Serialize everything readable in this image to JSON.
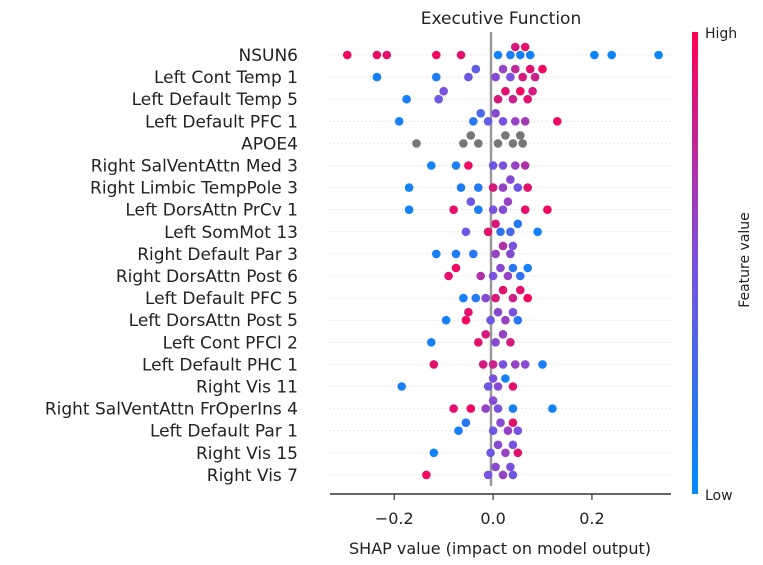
{
  "chart_data": {
    "type": "scatter",
    "subtype": "shap-beeswarm",
    "title": "Executive Function",
    "xlabel": "SHAP value (impact on model output)",
    "xlim": [
      -0.33,
      0.36
    ],
    "xticks": [
      -0.2,
      0.0,
      0.2
    ],
    "xtick_labels": [
      "−0.2",
      "0.0",
      "0.2"
    ],
    "grid": false,
    "colorbar": {
      "label": "Feature value",
      "high_label": "High",
      "low_label": "Low",
      "high_color": "#ff0052",
      "low_color": "#008bfb",
      "mid_color": "#7a52e0",
      "missing_color": "#777777"
    },
    "features": [
      {
        "name": "NSUN6",
        "points": [
          [
            -0.295,
            0.95
          ],
          [
            -0.235,
            0.92
          ],
          [
            -0.215,
            0.9
          ],
          [
            -0.115,
            0.95
          ],
          [
            -0.065,
            0.9
          ],
          [
            0.01,
            0.08
          ],
          [
            0.035,
            0.12
          ],
          [
            0.055,
            0.1
          ],
          [
            0.075,
            0.08
          ],
          [
            0.045,
            0.85
          ],
          [
            0.065,
            0.9
          ],
          [
            0.205,
            0.05
          ],
          [
            0.24,
            0.05
          ],
          [
            0.335,
            0.05
          ]
        ]
      },
      {
        "name": "Left Cont Temp 1",
        "points": [
          [
            -0.235,
            0.08
          ],
          [
            -0.115,
            0.12
          ],
          [
            -0.05,
            0.45
          ],
          [
            -0.035,
            0.4
          ],
          [
            0.005,
            0.55
          ],
          [
            0.02,
            0.6
          ],
          [
            0.035,
            0.5
          ],
          [
            0.045,
            0.75
          ],
          [
            0.06,
            0.85
          ],
          [
            0.075,
            0.9
          ],
          [
            0.085,
            0.8
          ],
          [
            0.1,
            0.95
          ]
        ]
      },
      {
        "name": "Left Default Temp 5",
        "points": [
          [
            -0.175,
            0.1
          ],
          [
            -0.11,
            0.45
          ],
          [
            -0.1,
            0.5
          ],
          [
            0.01,
            0.85
          ],
          [
            0.025,
            0.9
          ],
          [
            0.04,
            0.8
          ],
          [
            0.055,
            0.95
          ],
          [
            0.07,
            0.9
          ],
          [
            0.08,
            0.85
          ]
        ]
      },
      {
        "name": "Left Default PFC 1",
        "points": [
          [
            -0.19,
            0.1
          ],
          [
            -0.04,
            0.15
          ],
          [
            -0.025,
            0.3
          ],
          [
            -0.01,
            0.4
          ],
          [
            0.005,
            0.55
          ],
          [
            0.02,
            0.5
          ],
          [
            0.045,
            0.6
          ],
          [
            0.065,
            0.65
          ],
          [
            0.13,
            0.95
          ]
        ]
      },
      {
        "name": "APOE4",
        "missing": true,
        "points": [
          [
            -0.155,
            0
          ],
          [
            -0.06,
            0
          ],
          [
            -0.045,
            0
          ],
          [
            -0.03,
            0
          ],
          [
            0.01,
            0
          ],
          [
            0.025,
            0
          ],
          [
            0.04,
            0
          ],
          [
            0.055,
            0
          ],
          [
            0.06,
            0
          ]
        ]
      },
      {
        "name": "Right SalVentAttn Med 3",
        "points": [
          [
            -0.125,
            0.08
          ],
          [
            -0.075,
            0.12
          ],
          [
            -0.05,
            0.95
          ],
          [
            0.0,
            0.45
          ],
          [
            0.02,
            0.5
          ],
          [
            0.045,
            0.6
          ],
          [
            0.065,
            0.7
          ]
        ]
      },
      {
        "name": "Right Limbic TempPole 3",
        "points": [
          [
            -0.17,
            0.08
          ],
          [
            -0.065,
            0.12
          ],
          [
            -0.03,
            0.15
          ],
          [
            0.0,
            0.85
          ],
          [
            0.02,
            0.6
          ],
          [
            0.035,
            0.55
          ],
          [
            0.05,
            0.45
          ],
          [
            0.07,
            0.9
          ]
        ]
      },
      {
        "name": "Left DorsAttn PrCv 1",
        "points": [
          [
            -0.17,
            0.08
          ],
          [
            -0.03,
            0.12
          ],
          [
            -0.08,
            0.9
          ],
          [
            -0.045,
            0.45
          ],
          [
            0.0,
            0.5
          ],
          [
            0.02,
            0.55
          ],
          [
            0.03,
            0.6
          ],
          [
            0.065,
            0.9
          ],
          [
            0.11,
            0.95
          ]
        ]
      },
      {
        "name": "Left SomMot 13",
        "points": [
          [
            -0.055,
            0.45
          ],
          [
            -0.01,
            0.9
          ],
          [
            0.005,
            0.85
          ],
          [
            0.015,
            0.2
          ],
          [
            0.035,
            0.3
          ],
          [
            0.05,
            0.15
          ],
          [
            0.09,
            0.1
          ]
        ]
      },
      {
        "name": "Right Default Par 3",
        "points": [
          [
            -0.115,
            0.1
          ],
          [
            -0.075,
            0.12
          ],
          [
            -0.04,
            0.15
          ],
          [
            0.005,
            0.6
          ],
          [
            0.02,
            0.7
          ],
          [
            0.035,
            0.55
          ],
          [
            0.04,
            0.5
          ]
        ]
      },
      {
        "name": "Right DorsAttn Post 6",
        "points": [
          [
            -0.09,
            0.9
          ],
          [
            -0.075,
            0.95
          ],
          [
            -0.025,
            0.7
          ],
          [
            0.0,
            0.5
          ],
          [
            0.015,
            0.55
          ],
          [
            0.03,
            0.6
          ],
          [
            0.04,
            0.15
          ],
          [
            0.055,
            0.2
          ],
          [
            0.07,
            0.1
          ]
        ]
      },
      {
        "name": "Left Default PFC 5",
        "points": [
          [
            -0.06,
            0.1
          ],
          [
            -0.035,
            0.15
          ],
          [
            -0.015,
            0.55
          ],
          [
            0.005,
            0.85
          ],
          [
            0.02,
            0.9
          ],
          [
            0.04,
            0.8
          ],
          [
            0.055,
            0.9
          ],
          [
            0.07,
            0.95
          ]
        ]
      },
      {
        "name": "Left DorsAttn Post 5",
        "points": [
          [
            -0.095,
            0.1
          ],
          [
            -0.055,
            0.95
          ],
          [
            -0.05,
            0.9
          ],
          [
            -0.005,
            0.45
          ],
          [
            0.01,
            0.55
          ],
          [
            0.025,
            0.6
          ],
          [
            0.04,
            0.5
          ],
          [
            0.05,
            0.15
          ]
        ]
      },
      {
        "name": "Left Cont PFCl 2",
        "points": [
          [
            -0.125,
            0.1
          ],
          [
            -0.03,
            0.9
          ],
          [
            -0.015,
            0.85
          ],
          [
            0.005,
            0.55
          ],
          [
            0.02,
            0.6
          ],
          [
            0.035,
            0.85
          ]
        ]
      },
      {
        "name": "Left Default PHC 1",
        "points": [
          [
            -0.12,
            0.9
          ],
          [
            -0.02,
            0.85
          ],
          [
            0.0,
            0.8
          ],
          [
            0.02,
            0.5
          ],
          [
            0.045,
            0.6
          ],
          [
            0.065,
            0.55
          ],
          [
            0.1,
            0.1
          ]
        ]
      },
      {
        "name": "Right Vis 11",
        "points": [
          [
            -0.185,
            0.1
          ],
          [
            -0.01,
            0.45
          ],
          [
            0.0,
            0.5
          ],
          [
            0.01,
            0.55
          ],
          [
            0.025,
            0.1
          ],
          [
            0.04,
            0.9
          ]
        ]
      },
      {
        "name": "Right SalVentAttn FrOperIns 4",
        "points": [
          [
            -0.08,
            0.9
          ],
          [
            -0.045,
            0.95
          ],
          [
            -0.015,
            0.6
          ],
          [
            0.0,
            0.55
          ],
          [
            0.01,
            0.5
          ],
          [
            0.04,
            0.1
          ],
          [
            0.12,
            0.08
          ]
        ]
      },
      {
        "name": "Left Default Par 1",
        "points": [
          [
            -0.07,
            0.1
          ],
          [
            -0.055,
            0.15
          ],
          [
            0.0,
            0.45
          ],
          [
            0.015,
            0.55
          ],
          [
            0.03,
            0.6
          ],
          [
            0.04,
            0.9
          ],
          [
            0.05,
            0.5
          ]
        ]
      },
      {
        "name": "Right Vis 15",
        "points": [
          [
            -0.12,
            0.08
          ],
          [
            -0.005,
            0.45
          ],
          [
            0.01,
            0.55
          ],
          [
            0.025,
            0.6
          ],
          [
            0.04,
            0.5
          ],
          [
            0.05,
            0.9
          ]
        ]
      },
      {
        "name": "Right Vis 7",
        "points": [
          [
            -0.135,
            0.95
          ],
          [
            -0.01,
            0.5
          ],
          [
            0.005,
            0.55
          ],
          [
            0.02,
            0.6
          ],
          [
            0.035,
            0.5
          ],
          [
            0.04,
            0.45
          ]
        ]
      }
    ]
  }
}
